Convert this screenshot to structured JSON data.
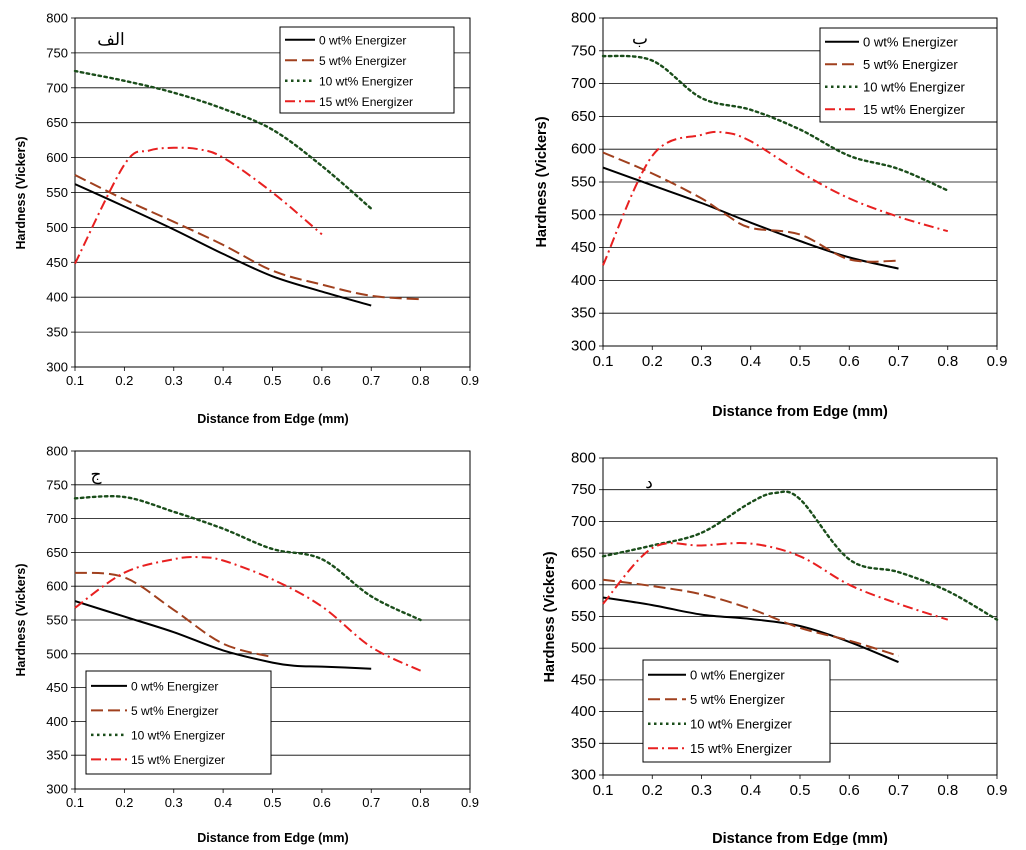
{
  "chart_data": [
    {
      "type": "line",
      "panel_label": "الف",
      "xlabel": "Distance from Edge (mm)",
      "ylabel": "Hardness (Vickers)",
      "xlim": [
        0.1,
        0.9
      ],
      "ylim": [
        300,
        800
      ],
      "xticks": [
        "0.1",
        "0.2",
        "0.3",
        "0.4",
        "0.5",
        "0.6",
        "0.7",
        "0.8",
        "0.9"
      ],
      "yticks": [
        "300",
        "350",
        "400",
        "450",
        "500",
        "550",
        "600",
        "650",
        "700",
        "750",
        "800"
      ],
      "grid": "horizontal",
      "legend_position": "top-right",
      "series": [
        {
          "name": "0 wt% Energizer",
          "color": "#000000",
          "dash": "solid",
          "x": [
            0.1,
            0.2,
            0.3,
            0.4,
            0.5,
            0.6,
            0.7
          ],
          "y": [
            562,
            530,
            497,
            462,
            430,
            408,
            388
          ]
        },
        {
          "name": "5 wt% Energizer",
          "color": "#a0401e",
          "dash": "long-dash",
          "x": [
            0.1,
            0.2,
            0.3,
            0.4,
            0.5,
            0.6,
            0.7,
            0.8
          ],
          "y": [
            575,
            540,
            508,
            475,
            438,
            418,
            402,
            397
          ]
        },
        {
          "name": "10 wt% Energizer",
          "color": "#1a4d1a",
          "dash": "dot",
          "x": [
            0.1,
            0.2,
            0.3,
            0.4,
            0.5,
            0.6,
            0.7
          ],
          "y": [
            724,
            710,
            693,
            670,
            640,
            588,
            527
          ]
        },
        {
          "name": "15 wt% Energizer",
          "color": "#e82020",
          "dash": "dash-dot",
          "x": [
            0.1,
            0.2,
            0.25,
            0.3,
            0.35,
            0.4,
            0.5,
            0.6
          ],
          "y": [
            448,
            590,
            610,
            614,
            612,
            600,
            550,
            490
          ]
        }
      ]
    },
    {
      "type": "line",
      "panel_label": "ب",
      "xlabel": "Distance from Edge (mm)",
      "ylabel": "Hardness (Vickers)",
      "xlim": [
        0.1,
        0.9
      ],
      "ylim": [
        300,
        800
      ],
      "xticks": [
        "0.1",
        "0.2",
        "0.3",
        "0.4",
        "0.5",
        "0.6",
        "0.7",
        "0.8",
        "0.9"
      ],
      "yticks": [
        "300",
        "350",
        "400",
        "450",
        "500",
        "550",
        "600",
        "650",
        "700",
        "750",
        "800"
      ],
      "grid": "horizontal",
      "legend_position": "top-right",
      "series": [
        {
          "name": "0 wt% Energizer",
          "color": "#000000",
          "dash": "solid",
          "x": [
            0.1,
            0.2,
            0.3,
            0.4,
            0.5,
            0.6,
            0.7
          ],
          "y": [
            572,
            545,
            518,
            488,
            460,
            435,
            418
          ]
        },
        {
          "name": "5 wt% Energizer",
          "color": "#a0401e",
          "dash": "long-dash",
          "x": [
            0.1,
            0.2,
            0.3,
            0.35,
            0.4,
            0.5,
            0.6,
            0.7
          ],
          "y": [
            595,
            563,
            525,
            500,
            480,
            470,
            432,
            430
          ]
        },
        {
          "name": "10 wt% Energizer",
          "color": "#1a4d1a",
          "dash": "dot",
          "x": [
            0.1,
            0.2,
            0.3,
            0.4,
            0.5,
            0.6,
            0.7,
            0.8
          ],
          "y": [
            742,
            735,
            678,
            660,
            630,
            590,
            570,
            537
          ]
        },
        {
          "name": "15 wt% Energizer",
          "color": "#e82020",
          "dash": "dash-dot",
          "x": [
            0.1,
            0.2,
            0.3,
            0.35,
            0.4,
            0.5,
            0.6,
            0.7,
            0.8
          ],
          "y": [
            423,
            590,
            622,
            625,
            612,
            565,
            525,
            497,
            475
          ]
        }
      ]
    },
    {
      "type": "line",
      "panel_label": "ج",
      "xlabel": "Distance from Edge (mm)",
      "ylabel": "Hardness (Vickers)",
      "xlim": [
        0.1,
        0.9
      ],
      "ylim": [
        300,
        800
      ],
      "xticks": [
        "0.1",
        "0.2",
        "0.3",
        "0.4",
        "0.5",
        "0.6",
        "0.7",
        "0.8",
        "0.9"
      ],
      "yticks": [
        "300",
        "350",
        "400",
        "450",
        "500",
        "550",
        "600",
        "650",
        "700",
        "750",
        "800"
      ],
      "grid": "horizontal",
      "legend_position": "bottom-left",
      "series": [
        {
          "name": "0 wt% Energizer",
          "color": "#000000",
          "dash": "solid",
          "x": [
            0.1,
            0.2,
            0.3,
            0.4,
            0.5,
            0.55,
            0.6,
            0.7
          ],
          "y": [
            578,
            555,
            532,
            505,
            487,
            482,
            481,
            478
          ]
        },
        {
          "name": "5 wt% Energizer",
          "color": "#a0401e",
          "dash": "long-dash",
          "x": [
            0.1,
            0.2,
            0.3,
            0.4,
            0.5
          ],
          "y": [
            620,
            613,
            565,
            515,
            495
          ]
        },
        {
          "name": "10 wt% Energizer",
          "color": "#1a4d1a",
          "dash": "dot",
          "x": [
            0.1,
            0.2,
            0.3,
            0.4,
            0.5,
            0.6,
            0.7,
            0.8
          ],
          "y": [
            730,
            732,
            710,
            685,
            655,
            640,
            585,
            550
          ]
        },
        {
          "name": "15 wt% Energizer",
          "color": "#e82020",
          "dash": "dash-dot",
          "x": [
            0.1,
            0.2,
            0.3,
            0.35,
            0.4,
            0.5,
            0.6,
            0.7,
            0.8
          ],
          "y": [
            568,
            620,
            640,
            643,
            638,
            610,
            570,
            510,
            475
          ]
        }
      ]
    },
    {
      "type": "line",
      "panel_label": "د",
      "xlabel": "Distance from Edge (mm)",
      "ylabel": "Hardness (Vickers)",
      "xlim": [
        0.1,
        0.9
      ],
      "ylim": [
        300,
        800
      ],
      "xticks": [
        "0.1",
        "0.2",
        "0.3",
        "0.4",
        "0.5",
        "0.6",
        "0.7",
        "0.8",
        "0.9"
      ],
      "yticks": [
        "300",
        "350",
        "400",
        "450",
        "500",
        "550",
        "600",
        "650",
        "700",
        "750",
        "800"
      ],
      "grid": "horizontal",
      "legend_position": "bottom-left",
      "series": [
        {
          "name": "0 wt% Energizer",
          "color": "#000000",
          "dash": "solid",
          "x": [
            0.1,
            0.2,
            0.3,
            0.4,
            0.5,
            0.6,
            0.7
          ],
          "y": [
            580,
            568,
            553,
            546,
            535,
            510,
            478
          ]
        },
        {
          "name": "5 wt% Energizer",
          "color": "#a0401e",
          "dash": "long-dash",
          "x": [
            0.1,
            0.2,
            0.3,
            0.4,
            0.5,
            0.6,
            0.7
          ],
          "y": [
            608,
            598,
            585,
            562,
            532,
            512,
            488
          ]
        },
        {
          "name": "10 wt% Energizer",
          "color": "#1a4d1a",
          "dash": "dot",
          "x": [
            0.1,
            0.2,
            0.3,
            0.4,
            0.45,
            0.5,
            0.6,
            0.7,
            0.8,
            0.9
          ],
          "y": [
            645,
            662,
            682,
            730,
            745,
            735,
            640,
            620,
            590,
            545
          ]
        },
        {
          "name": "15 wt% Energizer",
          "color": "#e82020",
          "dash": "dash-dot",
          "x": [
            0.1,
            0.2,
            0.3,
            0.4,
            0.5,
            0.6,
            0.7,
            0.8
          ],
          "y": [
            570,
            658,
            662,
            665,
            645,
            600,
            570,
            545
          ]
        }
      ]
    }
  ]
}
